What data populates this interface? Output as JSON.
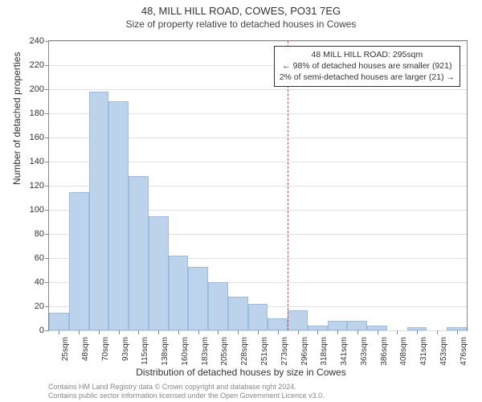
{
  "chart": {
    "type": "histogram",
    "title": "48, MILL HILL ROAD, COWES, PO31 7EG",
    "subtitle": "Size of property relative to detached houses in Cowes",
    "yaxis_title": "Number of detached properties",
    "xaxis_title": "Distribution of detached houses by size in Cowes",
    "background_color": "#ffffff",
    "grid_color": "#e0e0e0",
    "bar_color": "#bdd3ec",
    "bar_border_color": "#9abce0",
    "vline_color": "#dd4444",
    "ylim": [
      0,
      240
    ],
    "ytick_step": 20,
    "xlabels": [
      "25sqm",
      "48sqm",
      "70sqm",
      "93sqm",
      "115sqm",
      "138sqm",
      "160sqm",
      "183sqm",
      "205sqm",
      "228sqm",
      "251sqm",
      "273sqm",
      "296sqm",
      "318sqm",
      "341sqm",
      "363sqm",
      "386sqm",
      "408sqm",
      "431sqm",
      "453sqm",
      "476sqm"
    ],
    "values": [
      15,
      115,
      198,
      190,
      128,
      95,
      62,
      53,
      40,
      28,
      22,
      10,
      17,
      4,
      8,
      8,
      4,
      0,
      3,
      0,
      3
    ],
    "vline_index": 12.0,
    "annotation": {
      "line1": "48 MILL HILL ROAD: 295sqm",
      "line2": "← 98% of detached houses are smaller (921)",
      "line3": "2% of semi-detached houses are larger (21) →"
    },
    "footer_line1": "Contains HM Land Registry data © Crown copyright and database right 2024.",
    "footer_line2": "Contains public sector information licensed under the Open Government Licence v3.0.",
    "title_fontsize": 13,
    "subtitle_fontsize": 12,
    "axis_label_fontsize": 12,
    "tick_fontsize": 11
  }
}
